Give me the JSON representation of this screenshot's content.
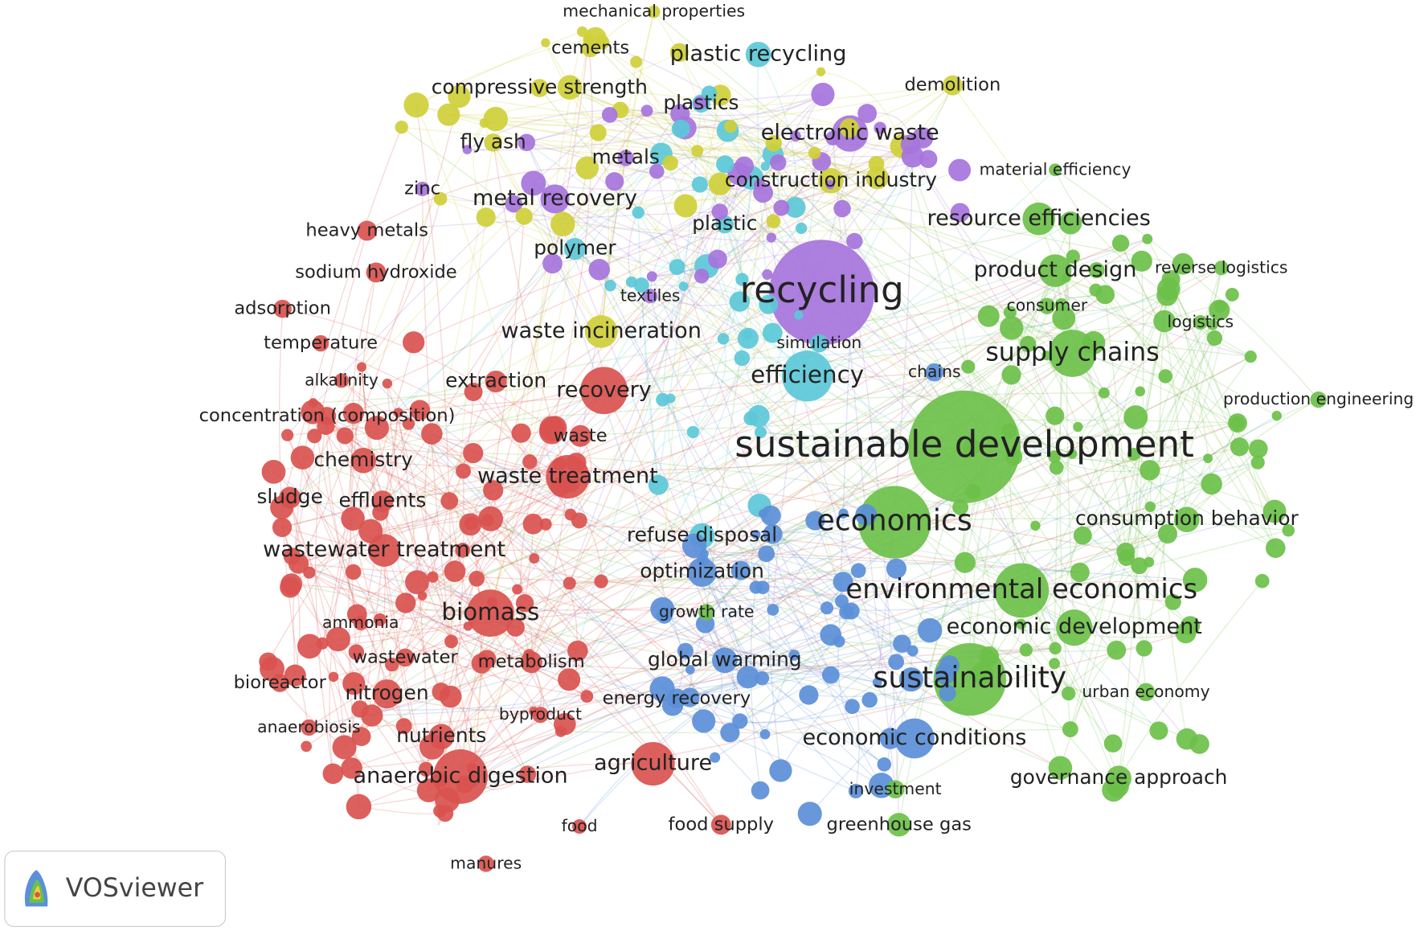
{
  "logo": "VOSviewer",
  "nodes": [
    {
      "label": "mechanical properties",
      "color": "#cfcf3a"
    },
    {
      "label": "cements",
      "color": "#cfcf3a"
    },
    {
      "label": "plastic recycling",
      "color": "#5cc8d8"
    },
    {
      "label": "compressive strength",
      "color": "#cfcf3a"
    },
    {
      "label": "demolition",
      "color": "#cfcf3a"
    },
    {
      "label": "plastics",
      "color": "#5cc8d8"
    },
    {
      "label": "electronic waste",
      "color": "#a674dc"
    },
    {
      "label": "fly ash",
      "color": "#cfcf3a"
    },
    {
      "label": "metals",
      "color": "#a674dc"
    },
    {
      "label": "material efficiency",
      "color": "#6cc04a"
    },
    {
      "label": "zinc",
      "color": "#a674dc"
    },
    {
      "label": "construction industry",
      "color": "#cfcf3a"
    },
    {
      "label": "metal recovery",
      "color": "#a674dc"
    },
    {
      "label": "resource efficiencies",
      "color": "#6cc04a"
    },
    {
      "label": "heavy metals",
      "color": "#d9534f"
    },
    {
      "label": "plastic",
      "color": "#5cc8d8"
    },
    {
      "label": "polymer",
      "color": "#5cc8d8"
    },
    {
      "label": "product design",
      "color": "#6cc04a"
    },
    {
      "label": "reverse logistics",
      "color": "#6cc04a"
    },
    {
      "label": "sodium hydroxide",
      "color": "#d9534f"
    },
    {
      "label": "textiles",
      "color": "#a674dc"
    },
    {
      "label": "recycling",
      "color": "#a674dc"
    },
    {
      "label": "consumer",
      "color": "#6cc04a"
    },
    {
      "label": "adsorption",
      "color": "#d9534f"
    },
    {
      "label": "logistics",
      "color": "#6cc04a"
    },
    {
      "label": "waste incineration",
      "color": "#cfcf3a"
    },
    {
      "label": "temperature",
      "color": "#d9534f"
    },
    {
      "label": "simulation",
      "color": "#5cc8d8"
    },
    {
      "label": "supply chains",
      "color": "#6cc04a"
    },
    {
      "label": "chains",
      "color": "#5b8fd8"
    },
    {
      "label": "efficiency",
      "color": "#5cc8d8"
    },
    {
      "label": "alkalinity",
      "color": "#d9534f"
    },
    {
      "label": "extraction",
      "color": "#d9534f"
    },
    {
      "label": "recovery",
      "color": "#d9534f"
    },
    {
      "label": "production engineering",
      "color": "#6cc04a"
    },
    {
      "label": "concentration (composition)",
      "color": "#d9534f"
    },
    {
      "label": "waste",
      "color": "#d9534f"
    },
    {
      "label": "sustainable development",
      "color": "#6cc04a"
    },
    {
      "label": "chemistry",
      "color": "#d9534f"
    },
    {
      "label": "waste treatment",
      "color": "#d9534f"
    },
    {
      "label": "sludge",
      "color": "#d9534f"
    },
    {
      "label": "effluents",
      "color": "#d9534f"
    },
    {
      "label": "economics",
      "color": "#6cc04a"
    },
    {
      "label": "consumption behavior",
      "color": "#6cc04a"
    },
    {
      "label": "refuse disposal",
      "color": "#5cc8d8"
    },
    {
      "label": "wastewater treatment",
      "color": "#d9534f"
    },
    {
      "label": "optimization",
      "color": "#5b8fd8"
    },
    {
      "label": "environmental economics",
      "color": "#6cc04a"
    },
    {
      "label": "growth rate",
      "color": "#6cc04a"
    },
    {
      "label": "biomass",
      "color": "#d9534f"
    },
    {
      "label": "ammonia",
      "color": "#d9534f"
    },
    {
      "label": "economic development",
      "color": "#6cc04a"
    },
    {
      "label": "wastewater",
      "color": "#d9534f"
    },
    {
      "label": "metabolism",
      "color": "#d9534f"
    },
    {
      "label": "global warming",
      "color": "#5b8fd8"
    },
    {
      "label": "sustainability",
      "color": "#6cc04a"
    },
    {
      "label": "bioreactor",
      "color": "#d9534f"
    },
    {
      "label": "nitrogen",
      "color": "#d9534f"
    },
    {
      "label": "energy recovery",
      "color": "#5b8fd8"
    },
    {
      "label": "urban economy",
      "color": "#6cc04a"
    },
    {
      "label": "byproduct",
      "color": "#d9534f"
    },
    {
      "label": "anaerobiosis",
      "color": "#d9534f"
    },
    {
      "label": "nutrients",
      "color": "#d9534f"
    },
    {
      "label": "economic conditions",
      "color": "#5b8fd8"
    },
    {
      "label": "agriculture",
      "color": "#d9534f"
    },
    {
      "label": "anaerobic digestion",
      "color": "#d9534f"
    },
    {
      "label": "governance approach",
      "color": "#6cc04a"
    },
    {
      "label": "investment",
      "color": "#6cc04a"
    },
    {
      "label": "food supply",
      "color": "#d9534f"
    },
    {
      "label": "greenhouse gas",
      "color": "#6cc04a"
    },
    {
      "label": "food",
      "color": "#d9534f"
    },
    {
      "label": "manures",
      "color": "#d9534f"
    }
  ]
}
